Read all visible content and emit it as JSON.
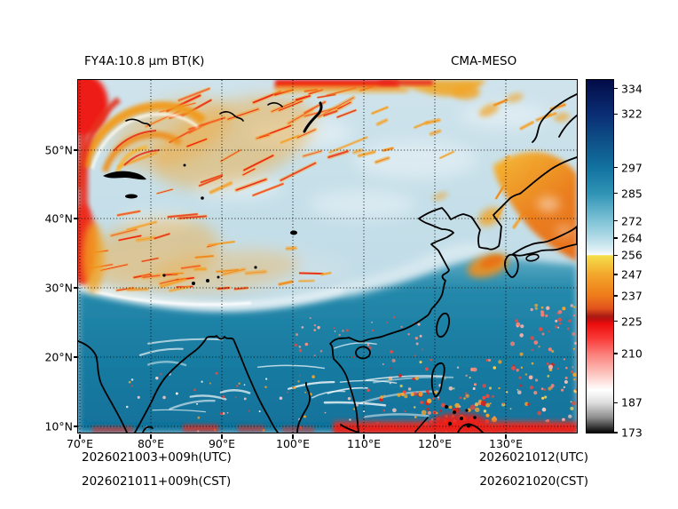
{
  "figure": {
    "title_left": "FY4A:10.8 μm BT(K)",
    "title_right": "CMA-MESO"
  },
  "axes": {
    "x_tick_labels": [
      "70°E",
      "80°E",
      "90°E",
      "100°E",
      "110°E",
      "120°E",
      "130°E"
    ],
    "y_tick_labels": [
      "50°N",
      "40°N",
      "30°N",
      "20°N",
      "10°N"
    ]
  },
  "colorbar": {
    "tick_labels": [
      "334",
      "322",
      "297",
      "285",
      "272",
      "264",
      "256",
      "247",
      "237",
      "225",
      "210",
      "187",
      "173"
    ]
  },
  "footer": {
    "left_utc": "2026021003+009h(UTC)",
    "left_cst": "2026021011+009h(CST)",
    "right_utc": "2026021012(UTC)",
    "right_cst": "2026021020(CST)"
  },
  "chart_data": {
    "type": "heatmap",
    "title": "FY4A:10.8 μm BT(K)",
    "subtitle": "CMA-MESO",
    "variable": "FY4A satellite 10.8 μm infrared brightness temperature, CMA-MESO model background",
    "units": "K",
    "grid": true,
    "x_axis": {
      "label_suffix": "°E",
      "range": [
        70,
        140
      ],
      "tick_values": [
        70,
        80,
        90,
        100,
        110,
        120,
        130
      ]
    },
    "y_axis": {
      "label_suffix": "°N",
      "range": [
        10,
        60
      ],
      "tick_values": [
        50,
        40,
        30,
        20,
        10
      ]
    },
    "colorbar": {
      "units": "K",
      "range": [
        173,
        338
      ],
      "tick_values": [
        334,
        322,
        297,
        285,
        272,
        264,
        256,
        247,
        237,
        225,
        210,
        187,
        173
      ],
      "palette": [
        {
          "value": 338,
          "color": "#020b47"
        },
        {
          "value": 334,
          "color": "#051453"
        },
        {
          "value": 322,
          "color": "#0a2d74"
        },
        {
          "value": 310,
          "color": "#0e4f86"
        },
        {
          "value": 297,
          "color": "#1272a0"
        },
        {
          "value": 285,
          "color": "#2f93b5"
        },
        {
          "value": 272,
          "color": "#7fc3d6"
        },
        {
          "value": 264,
          "color": "#b4dbe7"
        },
        {
          "value": 258,
          "color": "#e2f1f6"
        },
        {
          "value": 256.05,
          "color": "#fafdfe"
        },
        {
          "value": 256,
          "color": "#f5e04b"
        },
        {
          "value": 247,
          "color": "#f3a72c"
        },
        {
          "value": 237,
          "color": "#ee7a1a"
        },
        {
          "value": 231,
          "color": "#e1521d"
        },
        {
          "value": 227.5,
          "color": "#ab1b13"
        },
        {
          "value": 225.5,
          "color": "#c70e10"
        },
        {
          "value": 224,
          "color": "#ec0d0c"
        },
        {
          "value": 217,
          "color": "#f93a38"
        },
        {
          "value": 210,
          "color": "#fb7d78"
        },
        {
          "value": 200,
          "color": "#fdc9c4"
        },
        {
          "value": 193,
          "color": "#ffffff"
        },
        {
          "value": 187,
          "color": "#dedede"
        },
        {
          "value": 180,
          "color": "#8d8d8d"
        },
        {
          "value": 173,
          "color": "#050505"
        }
      ]
    },
    "time_labels": {
      "analysis_plus_forecast_utc": "2026021003+009h(UTC)",
      "analysis_plus_forecast_cst": "2026021011+009h(CST)",
      "valid_utc": "2026021012(UTC)",
      "valid_cst": "2026021020(CST)"
    },
    "regions": [
      {
        "area": "northwest quadrant 35-55N 70-105E (Central Asia / Tibetan Plateau)",
        "bt_K": "205-245",
        "appearance": "red/orange streaky jet-stream cirrus bands on pale clear background"
      },
      {
        "area": "top-left corner",
        "bt_K": "210-240",
        "appearance": "orange cyclonic cloud swirl with saturated red strip on west edge"
      },
      {
        "area": "top edge 98-112E",
        "bt_K": "~210",
        "appearance": "red cold cloud band"
      },
      {
        "area": "north-central China / Mongolia",
        "bt_K": "250-265",
        "appearance": "pale light-blue mostly clear sky"
      },
      {
        "area": "northeast (Sea of Japan / Okhotsk coast)",
        "bt_K": "230-245",
        "appearance": "large orange cloud shield"
      },
      {
        "area": "Korea Strait / Kyushu and Yellow Sea",
        "bt_K": "235-245",
        "appearance": "orange cloud patches"
      },
      {
        "area": "Himalayan front ~28-30N",
        "bt_K": "250-260",
        "appearance": "bright white rim between plateau and Indian plains"
      },
      {
        "area": "south of ~30N (India, Bay of Bengal, South China Sea, W Pacific)",
        "bt_K": "280-300",
        "appearance": "dark teal warm surface with thin white cirrus streaks"
      },
      {
        "area": "tropics 10-20N, Philippines and western Pacific",
        "bt_K": "190-230",
        "appearance": "scattered red/pink deep convective cells"
      },
      {
        "area": "southern map edge",
        "bt_K": "200-215",
        "appearance": "quasi-continuous red convective band"
      }
    ]
  }
}
